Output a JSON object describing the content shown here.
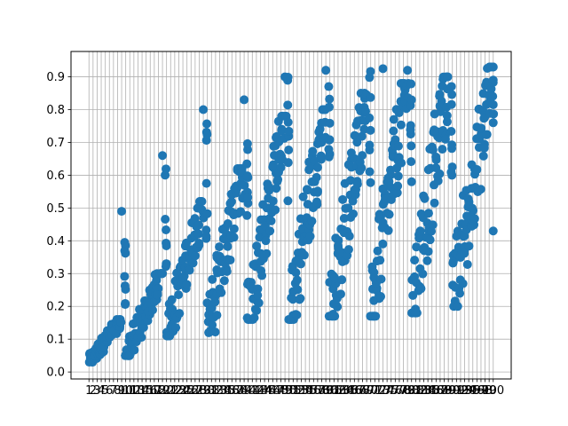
{
  "chart_data": {
    "type": "scatter",
    "title": "",
    "xlabel": "",
    "ylabel": "",
    "grid": true,
    "marker_color": "#1f77b4",
    "xlim": [
      -3.4,
      104.4
    ],
    "ylim": [
      -0.0213,
      0.9773
    ],
    "x_ticks": [
      1,
      2,
      3,
      4,
      5,
      6,
      7,
      8,
      9,
      10,
      11,
      12,
      13,
      14,
      15,
      16,
      17,
      18,
      19,
      20,
      21,
      22,
      23,
      24,
      25,
      26,
      27,
      28,
      29,
      30,
      31,
      32,
      33,
      34,
      35,
      36,
      37,
      38,
      39,
      40,
      41,
      42,
      43,
      44,
      45,
      46,
      47,
      48,
      49,
      50,
      51,
      52,
      53,
      54,
      55,
      56,
      57,
      58,
      59,
      60,
      61,
      62,
      63,
      64,
      65,
      66,
      67,
      68,
      69,
      70,
      71,
      72,
      73,
      74,
      75,
      76,
      77,
      78,
      79,
      80,
      81,
      82,
      83,
      84,
      85,
      86,
      87,
      88,
      89,
      90,
      91,
      92,
      93,
      94,
      95,
      96,
      97,
      98,
      99,
      100
    ],
    "y_ticks": [
      0.0,
      0.1,
      0.2,
      0.3,
      0.4,
      0.5,
      0.6,
      0.7,
      0.8,
      0.9
    ],
    "y_tick_labels": [
      "0.0",
      "0.1",
      "0.2",
      "0.3",
      "0.4",
      "0.5",
      "0.6",
      "0.7",
      "0.8",
      "0.9"
    ],
    "note": "",
    "groups": [
      {
        "x_start": 1,
        "x_end": 9,
        "y_low": 0.03,
        "y_high": 0.16,
        "spread": 0.025
      },
      {
        "x_start": 9,
        "x_end": 10,
        "y_low": 0.2,
        "y_high": 0.49,
        "spread": 0.03
      },
      {
        "x_start": 10,
        "x_end": 19,
        "y_low": 0.05,
        "y_high": 0.3,
        "spread": 0.05
      },
      {
        "x_start": 19,
        "x_end": 20,
        "y_low": 0.3,
        "y_high": 0.66,
        "spread": 0.03
      },
      {
        "x_start": 20,
        "x_end": 29,
        "y_low": 0.11,
        "y_high": 0.52,
        "spread": 0.08
      },
      {
        "x_start": 29,
        "x_end": 30,
        "y_low": 0.35,
        "y_high": 0.8,
        "spread": 0.03
      },
      {
        "x_start": 30,
        "x_end": 39,
        "y_low": 0.12,
        "y_high": 0.62,
        "spread": 0.1
      },
      {
        "x_start": 39,
        "x_end": 40,
        "y_low": 0.4,
        "y_high": 0.83,
        "spread": 0.03
      },
      {
        "x_start": 40,
        "x_end": 49,
        "y_low": 0.16,
        "y_high": 0.78,
        "spread": 0.12
      },
      {
        "x_start": 49,
        "x_end": 50,
        "y_low": 0.5,
        "y_high": 0.9,
        "spread": 0.03
      },
      {
        "x_start": 50,
        "x_end": 59,
        "y_low": 0.16,
        "y_high": 0.8,
        "spread": 0.13
      },
      {
        "x_start": 59,
        "x_end": 60,
        "y_low": 0.52,
        "y_high": 0.92,
        "spread": 0.03
      },
      {
        "x_start": 60,
        "x_end": 69,
        "y_low": 0.17,
        "y_high": 0.85,
        "spread": 0.13
      },
      {
        "x_start": 69,
        "x_end": 70,
        "y_low": 0.55,
        "y_high": 0.92,
        "spread": 0.03
      },
      {
        "x_start": 70,
        "x_end": 79,
        "y_low": 0.17,
        "y_high": 0.88,
        "spread": 0.14
      },
      {
        "x_start": 79,
        "x_end": 80,
        "y_low": 0.58,
        "y_high": 0.92,
        "spread": 0.03
      },
      {
        "x_start": 80,
        "x_end": 89,
        "y_low": 0.18,
        "y_high": 0.9,
        "spread": 0.14
      },
      {
        "x_start": 89,
        "x_end": 90,
        "y_low": 0.6,
        "y_high": 0.91,
        "spread": 0.03
      },
      {
        "x_start": 90,
        "x_end": 100,
        "y_low": 0.2,
        "y_high": 0.93,
        "spread": 0.14
      }
    ],
    "highlight_points": [
      {
        "x": 100,
        "y": 0.93
      },
      {
        "x": 100,
        "y": 0.89
      },
      {
        "x": 100,
        "y": 0.815
      },
      {
        "x": 100,
        "y": 0.76
      },
      {
        "x": 100,
        "y": 0.43
      },
      {
        "x": 73,
        "y": 0.925
      },
      {
        "x": 79,
        "y": 0.92
      },
      {
        "x": 59,
        "y": 0.92
      },
      {
        "x": 49,
        "y": 0.9
      },
      {
        "x": 39,
        "y": 0.83
      },
      {
        "x": 29,
        "y": 0.8
      },
      {
        "x": 19,
        "y": 0.66
      },
      {
        "x": 9,
        "y": 0.49
      }
    ]
  }
}
